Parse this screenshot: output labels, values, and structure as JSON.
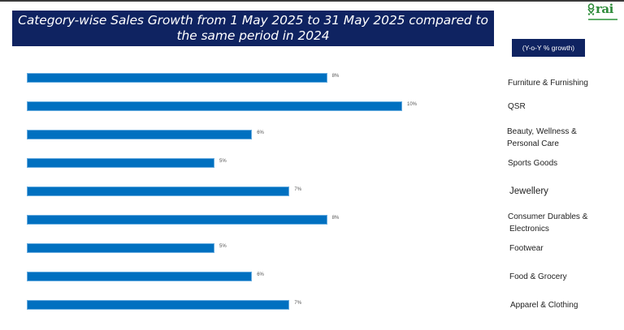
{
  "header": {
    "title": "Category-wise Sales Growth from 1 May 2025 to 31 May 2025 compared to the same period in 2024",
    "unit_badge": "(Y-o-Y % growth)",
    "logo_text": "rai",
    "logo_icon": "shopping-cart-icon"
  },
  "colors": {
    "title_bg": "#0f2361",
    "bar": "#0070c0",
    "logo": "#2e8b3a"
  },
  "chart_data": {
    "type": "bar",
    "orientation": "horizontal",
    "title": "Category-wise Sales Growth from 1 May 2025 to 31 May 2025 compared to the same period in 2024",
    "xlabel": "",
    "ylabel": "",
    "unit": "Y-o-Y % growth",
    "categories": [
      "Furniture & Furnishing",
      "QSR",
      "Beauty, Wellness & Personal Care",
      "Sports Goods",
      "Jewellery",
      "Consumer Durables & Electronics",
      "Footwear",
      "Food & Grocery",
      "Apparel & Clothing"
    ],
    "values": [
      8,
      10,
      6,
      5,
      7,
      8,
      5,
      6,
      7
    ],
    "value_labels": [
      "8%",
      "10%",
      "6%",
      "5%",
      "7%",
      "8%",
      "5%",
      "6%",
      "7%"
    ],
    "xlim": [
      0,
      10
    ],
    "grid": false,
    "legend": "none",
    "category_label_position": "right"
  },
  "rows": [
    {
      "label_line1": "Furniture &  Furnishing",
      "label_line2": "",
      "value_label": "8%"
    },
    {
      "label_line1": "QSR",
      "label_line2": "",
      "value_label": "10%"
    },
    {
      "label_line1": "Beauty, Wellness &",
      "label_line2": "Personal Care",
      "value_label": "6%"
    },
    {
      "label_line1": "Sports Goods",
      "label_line2": "",
      "value_label": "5%"
    },
    {
      "label_line1": "Jewellery",
      "label_line2": "",
      "value_label": "7%"
    },
    {
      "label_line1": "Consumer Durables &",
      "label_line2": "Electronics",
      "value_label": "8%"
    },
    {
      "label_line1": "Footwear",
      "label_line2": "",
      "value_label": "5%"
    },
    {
      "label_line1": "Food & Grocery",
      "label_line2": "",
      "value_label": "6%"
    },
    {
      "label_line1": "Apparel & Clothing",
      "label_line2": "",
      "value_label": "7%"
    }
  ]
}
